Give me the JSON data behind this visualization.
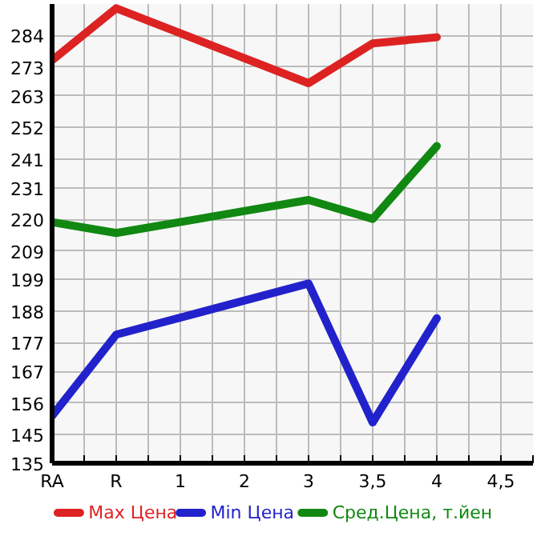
{
  "chart_data": {
    "type": "line",
    "categories": [
      "RA",
      "R",
      "1",
      "2",
      "3",
      "3,5",
      "4",
      "4,5"
    ],
    "series": [
      {
        "name": "Max Цена",
        "color": "#dd2222",
        "values": [
          275.4,
          293.5,
          null,
          null,
          267.4,
          281.3,
          283.4,
          null
        ]
      },
      {
        "name": "Min Цена",
        "color": "#2222cc",
        "values": [
          151.5,
          179.8,
          null,
          null,
          197.6,
          149.2,
          185.5,
          null
        ]
      },
      {
        "name": "Сред.Цена, т.йен",
        "color": "#118811",
        "values": [
          219.0,
          215.2,
          null,
          null,
          226.7,
          220.1,
          245.5,
          null
        ]
      }
    ],
    "ylim": [
      135,
      295
    ],
    "yticks": [
      135,
      145,
      156,
      167,
      177,
      188,
      199,
      209,
      220,
      231,
      241,
      252,
      263,
      273,
      284
    ],
    "grid": true,
    "legend": "bottom",
    "marker": "none",
    "line_style": "solid"
  }
}
